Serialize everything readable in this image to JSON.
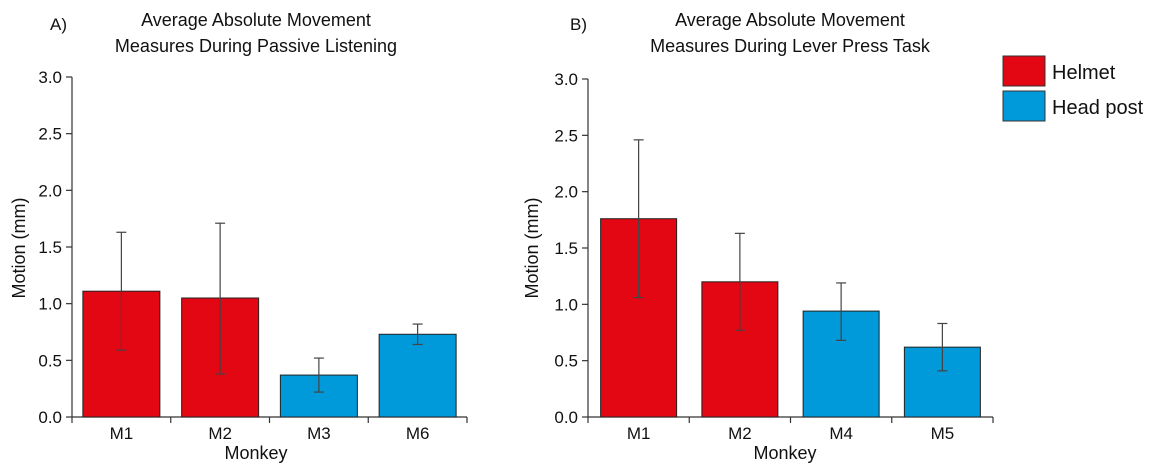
{
  "colors": {
    "helmet": "#E30613",
    "head_post": "#0099D9",
    "axis": "#333333",
    "error": "#444444"
  },
  "legend": {
    "placement": "top-right",
    "items": [
      {
        "label": "Helmet",
        "color": "#E30613"
      },
      {
        "label": "Head post",
        "color": "#0099D9"
      }
    ]
  },
  "chart_data": [
    {
      "type": "bar",
      "panel_label": "A)",
      "title_line1": "Average Absolute Movement",
      "title_line2": "Measures During Passive Listening",
      "xlabel": "Monkey",
      "ylabel": "Motion (mm)",
      "ylim": [
        0,
        3.0
      ],
      "yticks": [
        "0.0",
        "0.5",
        "1.0",
        "1.5",
        "2.0",
        "2.5",
        "3.0"
      ],
      "categories": [
        "M1",
        "M2",
        "M3",
        "M6"
      ],
      "values": [
        1.11,
        1.05,
        0.37,
        0.73
      ],
      "error_low": [
        0.59,
        0.38,
        0.22,
        0.64
      ],
      "error_high": [
        1.63,
        1.71,
        0.52,
        0.82
      ],
      "groups": [
        "Helmet",
        "Helmet",
        "Head post",
        "Head post"
      ]
    },
    {
      "type": "bar",
      "panel_label": "B)",
      "title_line1": "Average Absolute Movement",
      "title_line2": "Measures During Lever Press Task",
      "xlabel": "Monkey",
      "ylabel": "Motion (mm)",
      "ylim": [
        0,
        3.0
      ],
      "yticks": [
        "0.0",
        "0.5",
        "1.0",
        "1.5",
        "2.0",
        "2.5",
        "3.0"
      ],
      "categories": [
        "M1",
        "M2",
        "M4",
        "M5"
      ],
      "values": [
        1.76,
        1.2,
        0.94,
        0.62
      ],
      "error_low": [
        1.06,
        0.77,
        0.68,
        0.41
      ],
      "error_high": [
        2.46,
        1.63,
        1.19,
        0.83
      ],
      "groups": [
        "Helmet",
        "Helmet",
        "Head post",
        "Head post"
      ]
    }
  ]
}
